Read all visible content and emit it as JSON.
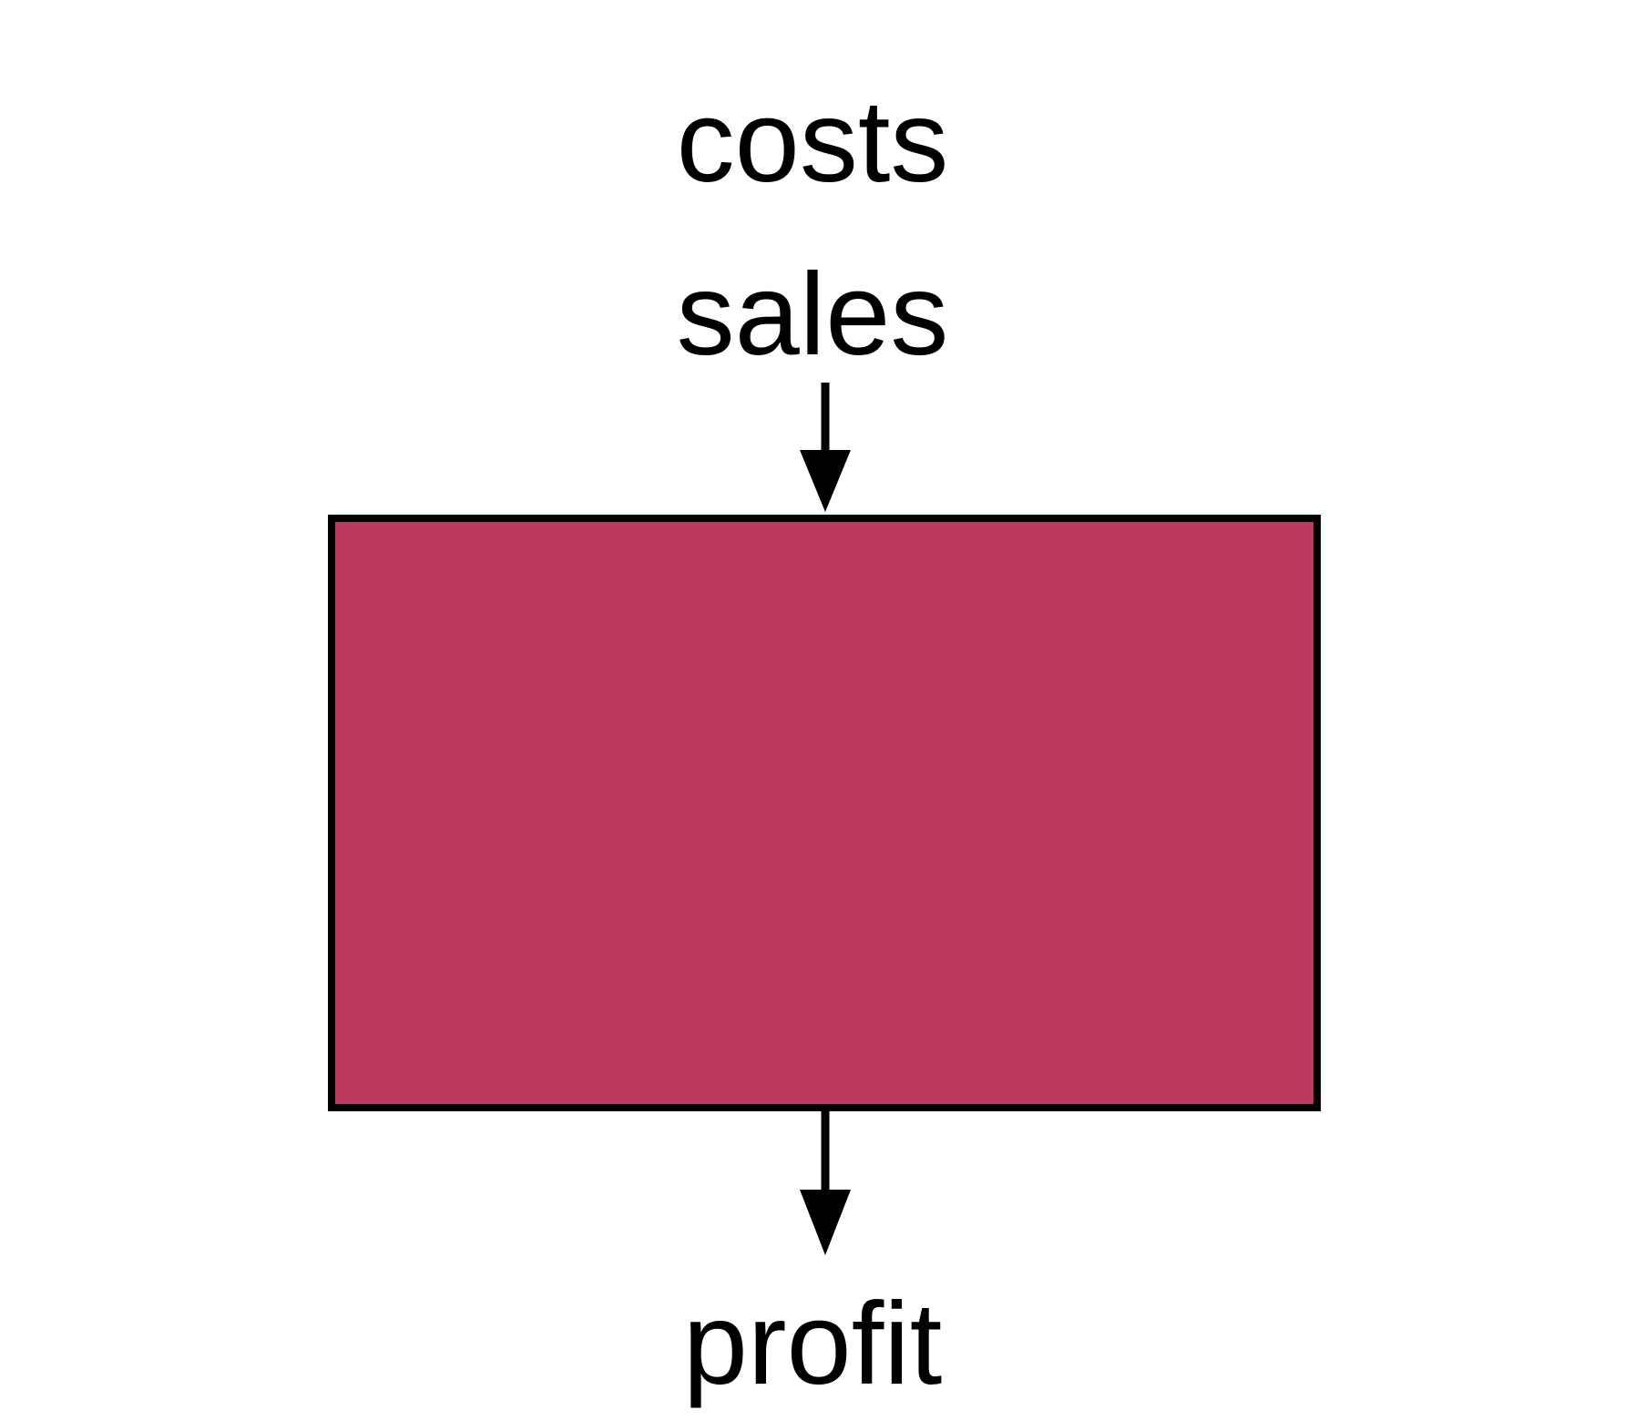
{
  "inputs": [
    "costs",
    "sales"
  ],
  "output": "profit",
  "colors": {
    "box_fill": "#BC3A5E",
    "stroke": "#000000",
    "background": "#FFFFFF"
  }
}
